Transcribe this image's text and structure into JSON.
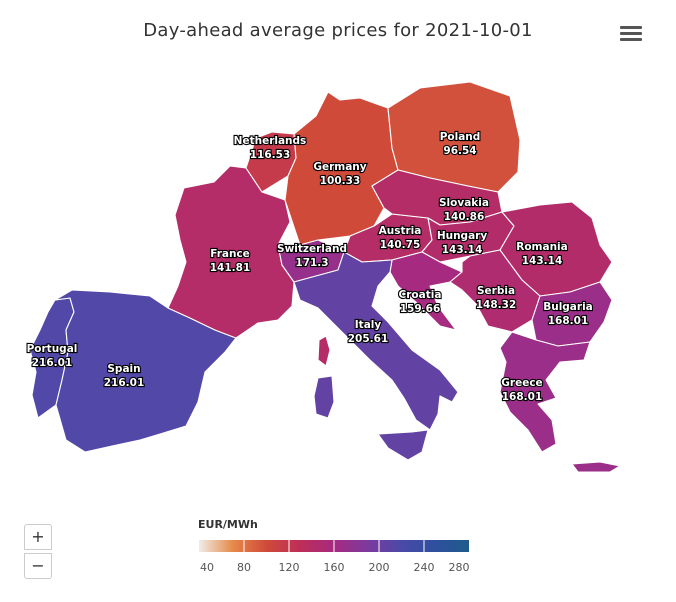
{
  "title": "Day-ahead average prices for 2021-10-01",
  "menu": {
    "icon": "hamburger-menu-icon"
  },
  "zoom": {
    "in_label": "+",
    "out_label": "−"
  },
  "legend": {
    "title": "EUR/MWh",
    "min": 40,
    "max": 280,
    "ticks": [
      "40",
      "80",
      "120",
      "160",
      "200",
      "240",
      "280"
    ],
    "colors": [
      "#f0ece8",
      "#e58a4a",
      "#d04a3a",
      "#be2e58",
      "#a52a80",
      "#7c3a9e",
      "#4a4aa8",
      "#2e4f9e",
      "#1f5b8a"
    ]
  },
  "countries": [
    {
      "name": "Portugal",
      "price": "216.01"
    },
    {
      "name": "Spain",
      "price": "216.01"
    },
    {
      "name": "France",
      "price": "141.81"
    },
    {
      "name": "Netherlands",
      "price": "116.53"
    },
    {
      "name": "Germany",
      "price": "100.33"
    },
    {
      "name": "Poland",
      "price": "96.54"
    },
    {
      "name": "Switzerland",
      "price": "171.3"
    },
    {
      "name": "Austria",
      "price": "140.75"
    },
    {
      "name": "Slovakia",
      "price": "140.86"
    },
    {
      "name": "Hungary",
      "price": "143.14"
    },
    {
      "name": "Romania",
      "price": "143.14"
    },
    {
      "name": "Croatia",
      "price": "159.66"
    },
    {
      "name": "Serbia",
      "price": "148.32"
    },
    {
      "name": "Bulgaria",
      "price": "168.01"
    },
    {
      "name": "Italy",
      "price": "205.61"
    },
    {
      "name": "Greece",
      "price": "168.01"
    }
  ]
}
